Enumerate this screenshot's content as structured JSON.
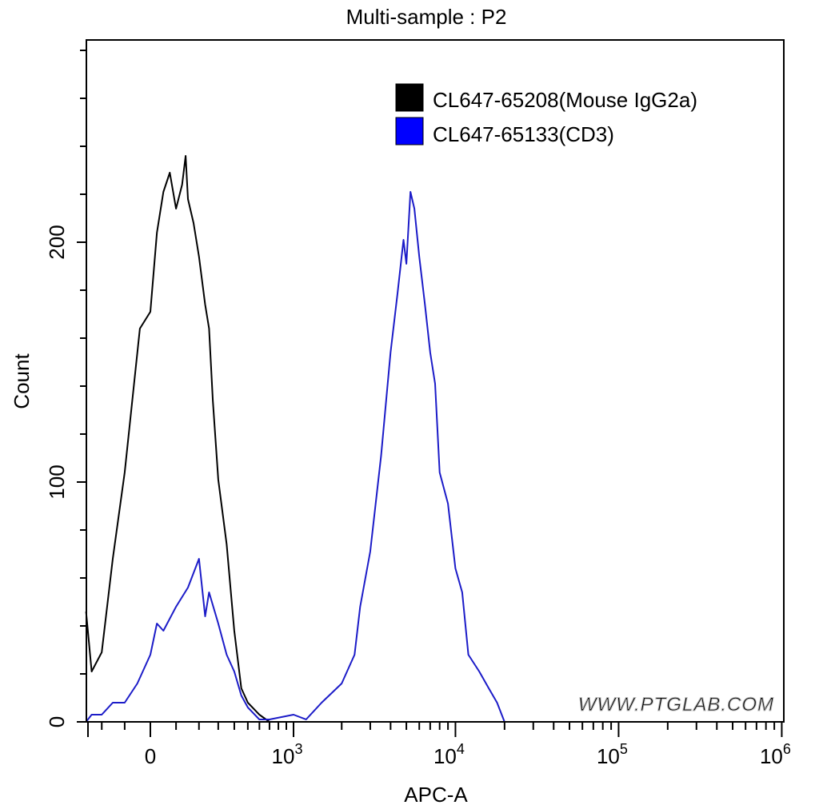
{
  "chart_data": {
    "type": "line",
    "title": "Multi-sample : P2",
    "xlabel": "APC-A",
    "ylabel": "Count",
    "x_scale": "biexponential",
    "xlim": [
      -280,
      1000000
    ],
    "ylim": [
      0,
      284
    ],
    "grid": false,
    "legend_placement": "top-right",
    "x_ticks": [
      {
        "value": 0,
        "base": "0",
        "exp": ""
      },
      {
        "value": 1000,
        "base": "10",
        "exp": "3"
      },
      {
        "value": 10000,
        "base": "10",
        "exp": "4"
      },
      {
        "value": 100000,
        "base": "10",
        "exp": "5"
      },
      {
        "value": 1000000,
        "base": "10",
        "exp": "6"
      }
    ],
    "y_ticks": [
      {
        "value": 0,
        "label": "0"
      },
      {
        "value": 100,
        "label": "100"
      },
      {
        "value": 200,
        "label": "200"
      }
    ],
    "series": [
      {
        "name": "CL647-65208(Mouse IgG2a)",
        "color": "#000000",
        "swatch_color": "#000000",
        "x": [
          -280,
          -250,
          -200,
          -150,
          -100,
          -40,
          0,
          25,
          50,
          75,
          100,
          125,
          140,
          150,
          175,
          200,
          230,
          250,
          270,
          300,
          350,
          400,
          450,
          500,
          600,
          700,
          1000
        ],
        "y": [
          46,
          21,
          29,
          68,
          104,
          164,
          171,
          204,
          221,
          229,
          214,
          224,
          236,
          218,
          208,
          194,
          174,
          164,
          134,
          101,
          74,
          38,
          14,
          8,
          3,
          0,
          0
        ]
      },
      {
        "name": "CL647-65133(CD3)",
        "color": "#1c1cc8",
        "swatch_color": "#0000ff",
        "x": [
          -280,
          -250,
          -200,
          -150,
          -100,
          -50,
          0,
          25,
          50,
          100,
          150,
          200,
          230,
          250,
          300,
          350,
          400,
          450,
          500,
          600,
          700,
          1000,
          1200,
          1500,
          2000,
          2400,
          2600,
          3000,
          3500,
          4000,
          4400,
          4800,
          5000,
          5300,
          5600,
          6000,
          6500,
          7000,
          7500,
          8000,
          9000,
          10000,
          11000,
          12000,
          14000,
          16000,
          18000,
          20000
        ],
        "y": [
          0,
          3,
          3,
          8,
          8,
          16,
          28,
          41,
          38,
          48,
          56,
          68,
          44,
          54,
          41,
          28,
          21,
          11,
          6,
          1,
          1,
          3,
          1,
          8,
          16,
          28,
          48,
          71,
          111,
          154,
          178,
          201,
          191,
          221,
          214,
          194,
          174,
          154,
          141,
          104,
          91,
          64,
          54,
          28,
          21,
          14,
          8,
          0
        ]
      }
    ],
    "watermark": "WWW.PTGLAB.COM"
  }
}
